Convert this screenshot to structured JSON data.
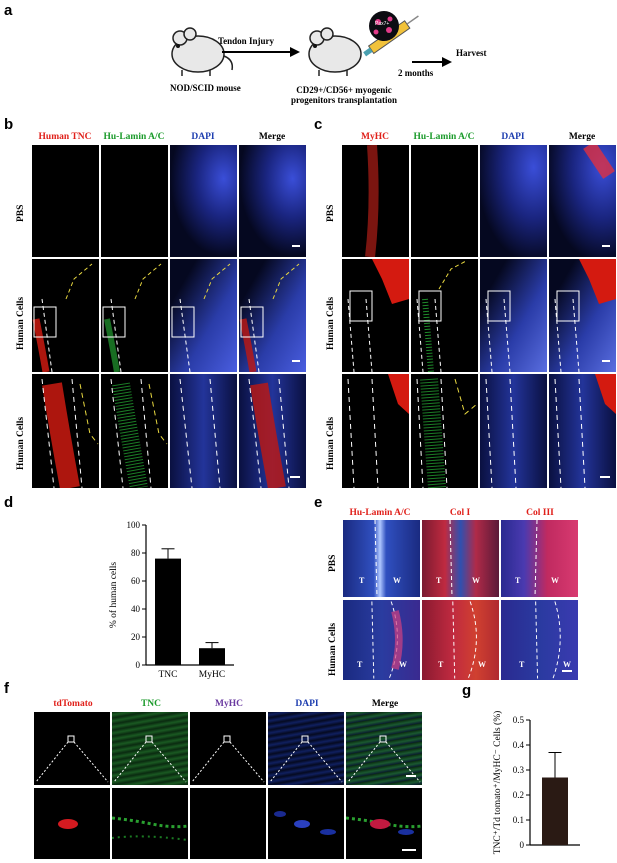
{
  "panel_labels": {
    "a": "a",
    "b": "b",
    "c": "c",
    "d": "d",
    "e": "e",
    "f": "f",
    "g": "g"
  },
  "panel_a": {
    "injury": "Tendon Injury",
    "mouse": "NOD/SCID  mouse",
    "cells_line1": "CD29+/CD56+ myogenic",
    "cells_line2": "progenitors transplantation",
    "duration": "2 months",
    "harvest": "Harvest",
    "dish_label": "Pax7+"
  },
  "panel_b": {
    "columns": [
      "Human TNC",
      "Hu-Lamin A/C",
      "DAPI",
      "Merge"
    ],
    "column_colors": [
      "#e0201a",
      "#1a9a2a",
      "#1f3fb0",
      "#000000"
    ],
    "rows": [
      "PBS",
      "Human Cells",
      "Human Cells"
    ]
  },
  "panel_c": {
    "columns": [
      "MyHC",
      "Hu-Lamin A/C",
      "DAPI",
      "Merge"
    ],
    "column_colors": [
      "#e0201a",
      "#1a9a2a",
      "#1f3fb0",
      "#000000"
    ],
    "rows": [
      "PBS",
      "Human Cells",
      "Human Cells"
    ]
  },
  "panel_e": {
    "columns": [
      "Hu-Lamin A/C",
      "Col I",
      "Col III"
    ],
    "rows": [
      "PBS",
      "Human Cells"
    ],
    "tissue_labels": {
      "t": "T",
      "w": "W"
    }
  },
  "panel_f": {
    "columns": [
      "tdTomato",
      "TNC",
      "MyHC",
      "DAPI",
      "Merge"
    ],
    "column_colors": [
      "#e0201a",
      "#1a9a2a",
      "#6a3aa0",
      "#1f3fb0",
      "#000000"
    ]
  },
  "chart_data": [
    {
      "type": "bar",
      "panel": "d",
      "categories": [
        "TNC",
        "MyHC"
      ],
      "values": [
        76,
        12
      ],
      "errors": [
        7,
        4
      ],
      "ylabel": "% of human cells",
      "ylim": [
        0,
        100
      ],
      "yticks": [
        "0",
        "20",
        "40",
        "60",
        "80",
        "100"
      ],
      "bar_color": "#000000"
    },
    {
      "type": "bar",
      "panel": "g",
      "categories": [
        ""
      ],
      "values": [
        0.27
      ],
      "errors": [
        0.1
      ],
      "ylabel": "TNC⁺/Td tomato⁺/MyHC⁻ Cells (%)",
      "ylim": [
        0,
        0.5
      ],
      "yticks": [
        "0",
        "0.1",
        "0.2",
        "0.3",
        "0.4",
        "0.5"
      ],
      "bar_color": "#2a1a14"
    }
  ]
}
